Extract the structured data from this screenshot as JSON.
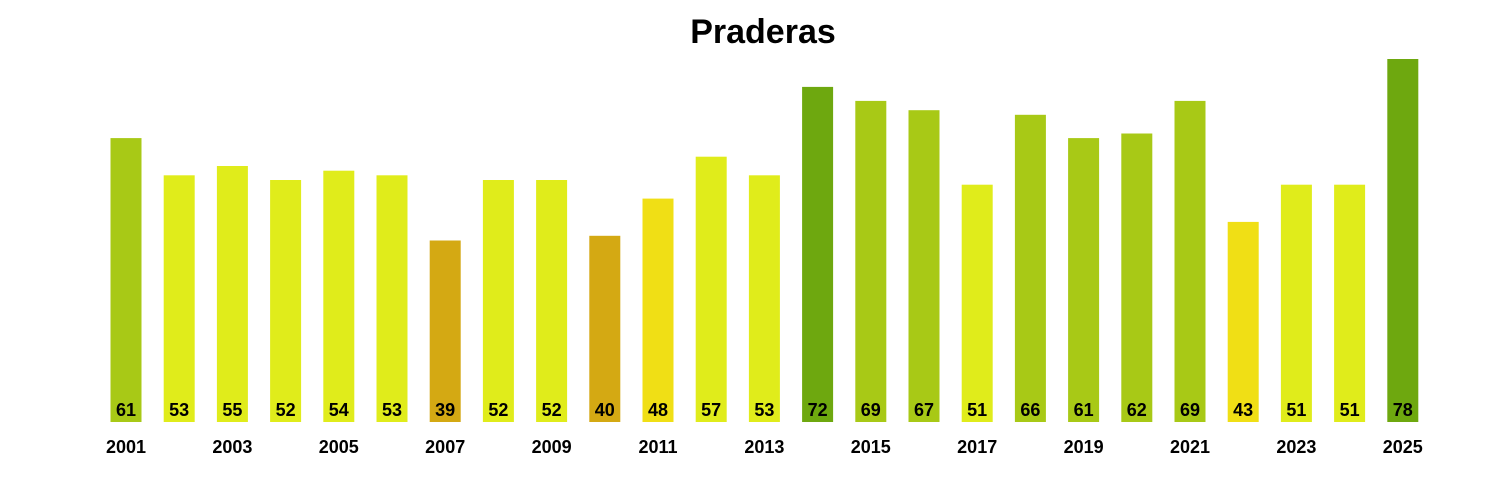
{
  "chart_data": {
    "type": "bar",
    "title": "Praderas",
    "xlabel": "",
    "ylabel": "",
    "categories": [
      "2001",
      "2002",
      "2003",
      "2004",
      "2005",
      "2006",
      "2007",
      "2008",
      "2009",
      "2010",
      "2011",
      "2012",
      "2013",
      "2014",
      "2015",
      "2016",
      "2017",
      "2018",
      "2019",
      "2020",
      "2021",
      "2022",
      "2023",
      "2024",
      "2025"
    ],
    "x_tick_labels": [
      "2001",
      "",
      "2003",
      "",
      "2005",
      "",
      "2007",
      "",
      "2009",
      "",
      "2011",
      "",
      "2013",
      "",
      "2015",
      "",
      "2017",
      "",
      "2019",
      "",
      "2021",
      "",
      "2023",
      "",
      "2025"
    ],
    "values": [
      61,
      53,
      55,
      52,
      54,
      53,
      39,
      52,
      52,
      40,
      48,
      57,
      53,
      72,
      69,
      67,
      51,
      66,
      61,
      62,
      69,
      43,
      51,
      51,
      78
    ],
    "value_labels": [
      "61",
      "53",
      "55",
      "52",
      "54",
      "53",
      "39",
      "52",
      "52",
      "40",
      "48",
      "57",
      "53",
      "72",
      "69",
      "67",
      "51",
      "66",
      "61",
      "62",
      "69",
      "43",
      "51",
      "51",
      "78"
    ],
    "bar_colors": [
      "#a8c916",
      "#e0ec1b",
      "#e0ec1b",
      "#e0ec1b",
      "#e0ec1b",
      "#e0ec1b",
      "#d4a913",
      "#e0ec1b",
      "#e0ec1b",
      "#d4a913",
      "#f0df15",
      "#e0ec1b",
      "#e0ec1b",
      "#6ea80f",
      "#a8c916",
      "#a8c916",
      "#e0ec1b",
      "#a8c916",
      "#a8c916",
      "#a8c916",
      "#a8c916",
      "#f0df15",
      "#e0ec1b",
      "#e0ec1b",
      "#6ea80f"
    ],
    "ylim": [
      0,
      78
    ],
    "grid": false,
    "legend": "none"
  }
}
